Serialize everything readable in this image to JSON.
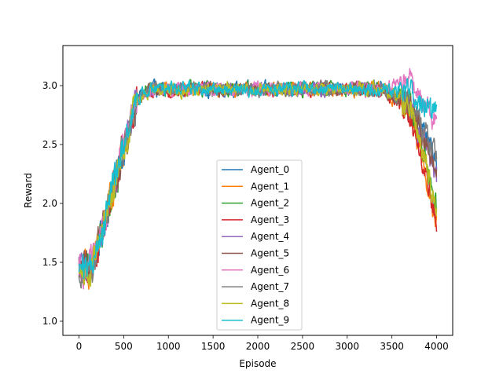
{
  "chart_data": {
    "type": "line",
    "title": "",
    "xlabel": "Episode",
    "ylabel": "Reward",
    "xlim": [
      -180,
      4180
    ],
    "ylim": [
      0.88,
      3.34
    ],
    "xticks": [
      0,
      500,
      1000,
      1500,
      2000,
      2500,
      3000,
      3500,
      4000
    ],
    "xtick_labels": [
      "0",
      "500",
      "1000",
      "1500",
      "2000",
      "2500",
      "3000",
      "3500",
      "4000"
    ],
    "yticks": [
      1.0,
      1.5,
      2.0,
      2.5,
      3.0
    ],
    "ytick_labels": [
      "1.0",
      "1.5",
      "2.0",
      "2.5",
      "3.0"
    ],
    "grid": false,
    "legend_position": "lower-center",
    "series": [
      {
        "name": "Agent_0",
        "color": "#1f77b4",
        "end_value": 2.35,
        "peak_late": 3.0
      },
      {
        "name": "Agent_1",
        "color": "#ff7f0e",
        "end_value": 1.85,
        "peak_late": 2.95
      },
      {
        "name": "Agent_2",
        "color": "#2ca02c",
        "end_value": 1.95,
        "peak_late": 3.05
      },
      {
        "name": "Agent_3",
        "color": "#d62728",
        "end_value": 1.8,
        "peak_late": 2.95
      },
      {
        "name": "Agent_4",
        "color": "#9467bd",
        "end_value": 2.2,
        "peak_late": 3.0
      },
      {
        "name": "Agent_5",
        "color": "#8c564b",
        "end_value": 2.3,
        "peak_late": 3.0
      },
      {
        "name": "Agent_6",
        "color": "#e377c2",
        "end_value": 2.7,
        "peak_late": 3.2
      },
      {
        "name": "Agent_7",
        "color": "#7f7f7f",
        "end_value": 2.4,
        "peak_late": 3.0
      },
      {
        "name": "Agent_8",
        "color": "#bcbd22",
        "end_value": 1.9,
        "peak_late": 3.0
      },
      {
        "name": "Agent_9",
        "color": "#17becf",
        "end_value": 2.8,
        "peak_late": 3.1
      }
    ]
  }
}
